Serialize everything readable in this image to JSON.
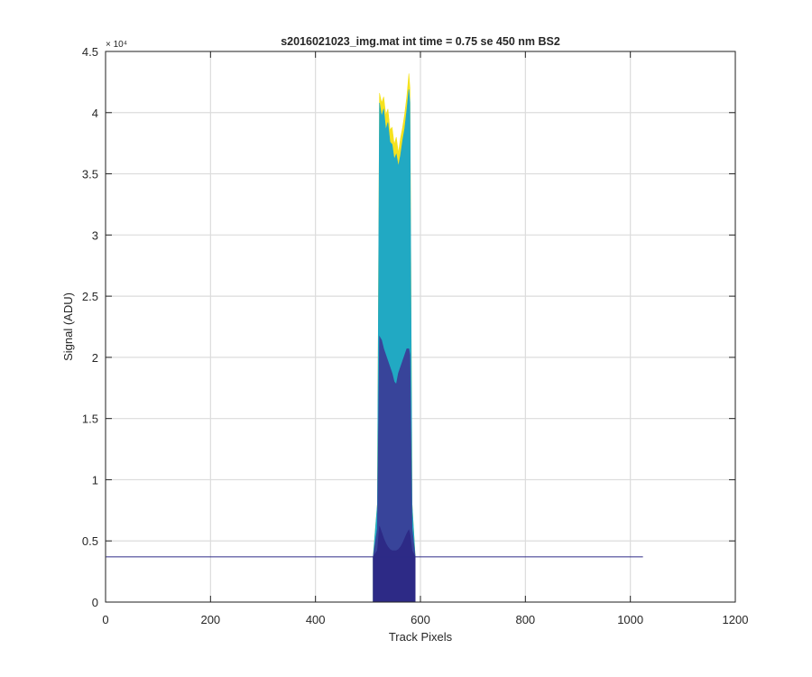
{
  "chart_data": {
    "type": "area",
    "title": "s2016021023_img.mat int time = 0.75 se  450 nm BS2",
    "xlabel": "Track Pixels",
    "ylabel": "Signal (ADU)",
    "xlim": [
      0,
      1200
    ],
    "ylim": [
      0,
      45000
    ],
    "xticks": [
      0,
      200,
      400,
      600,
      800,
      1000,
      1200
    ],
    "xtick_labels": [
      "0",
      "200",
      "400",
      "600",
      "800",
      "1000",
      "1200"
    ],
    "yticks": [
      0,
      5000,
      10000,
      15000,
      20000,
      25000,
      30000,
      35000,
      40000,
      45000
    ],
    "ytick_labels": [
      "0",
      "0.5",
      "1",
      "1.5",
      "2",
      "2.5",
      "3",
      "3.5",
      "4",
      "4.5"
    ],
    "y_exponent_label": "× 10⁴",
    "grid": true,
    "baseline": {
      "x_range": [
        1,
        1024
      ],
      "value": 3700
    },
    "series": [
      {
        "color": "#F5E21E",
        "x": [
          510,
          518,
          522,
          526,
          530,
          534,
          538,
          542,
          546,
          550,
          554,
          558,
          562,
          566,
          570,
          574,
          578,
          580,
          584,
          590
        ],
        "y": [
          3700,
          8000,
          41600,
          40800,
          41300,
          39800,
          40300,
          38600,
          38800,
          37400,
          38000,
          36700,
          37900,
          38800,
          39900,
          41300,
          43200,
          42000,
          8000,
          3700
        ]
      },
      {
        "color": "#21A9C3",
        "x": [
          510,
          518,
          522,
          526,
          530,
          534,
          538,
          542,
          546,
          550,
          554,
          558,
          562,
          566,
          570,
          574,
          578,
          580,
          584,
          590
        ],
        "y": [
          3700,
          8000,
          40800,
          39700,
          40300,
          38600,
          39200,
          37600,
          37400,
          36200,
          36600,
          35600,
          36500,
          37700,
          38700,
          40200,
          41900,
          40800,
          8000,
          3700
        ]
      },
      {
        "color": "#38449A",
        "x": [
          510,
          518,
          522,
          526,
          530,
          534,
          538,
          542,
          546,
          550,
          554,
          558,
          562,
          566,
          570,
          574,
          578,
          580,
          584,
          590
        ],
        "y": [
          3700,
          6000,
          21700,
          21400,
          20700,
          20200,
          19700,
          19200,
          18700,
          18000,
          17800,
          18700,
          19200,
          19700,
          20200,
          20700,
          20700,
          20200,
          6000,
          3700
        ]
      },
      {
        "color": "#2D2A86",
        "x": [
          510,
          518,
          522,
          526,
          530,
          534,
          538,
          542,
          546,
          550,
          554,
          558,
          562,
          566,
          570,
          574,
          578,
          580,
          584,
          590
        ],
        "y": [
          3700,
          4200,
          6200,
          5700,
          5200,
          4800,
          4500,
          4300,
          4200,
          4200,
          4200,
          4300,
          4500,
          4800,
          5200,
          5600,
          5900,
          5600,
          4200,
          3700
        ]
      }
    ]
  }
}
